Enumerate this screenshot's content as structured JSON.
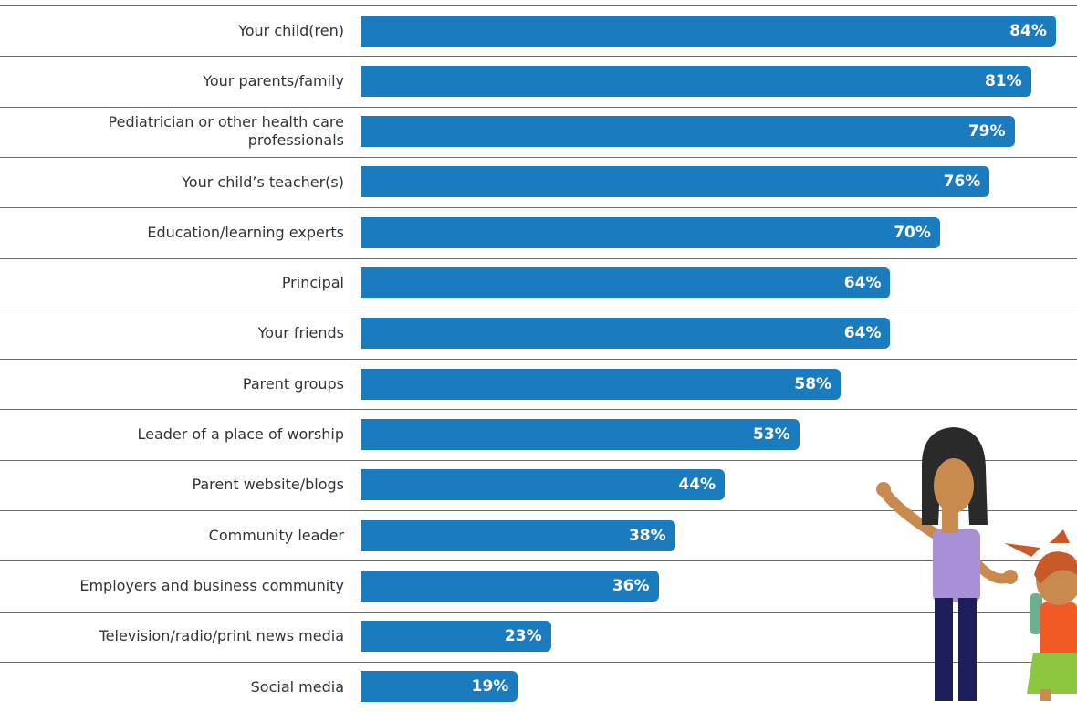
{
  "chart_data": {
    "type": "bar",
    "orientation": "horizontal",
    "color": "#1b7bbf",
    "categories": [
      "Your child(ren)",
      "Your parents/family",
      "Pediatrician or other health care professionals",
      "Your child’s teacher(s)",
      "Education/learning experts",
      "Principal",
      "Your friends",
      "Parent groups",
      "Leader of a place of worship",
      "Parent website/blogs",
      "Community leader",
      "Employers and business community",
      "Television/radio/print news media",
      "Social media"
    ],
    "values": [
      84,
      81,
      79,
      76,
      70,
      64,
      64,
      58,
      53,
      44,
      38,
      36,
      23,
      19
    ],
    "value_labels": [
      "84%",
      "81%",
      "79%",
      "76%",
      "70%",
      "64%",
      "64%",
      "58%",
      "53%",
      "44%",
      "38%",
      "36%",
      "23%",
      "19%"
    ]
  }
}
